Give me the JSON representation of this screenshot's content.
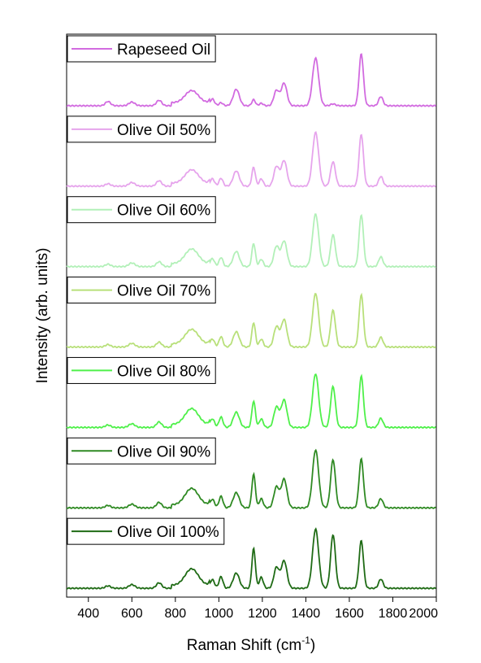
{
  "chart_data": {
    "type": "line",
    "title": "",
    "xlabel": "Raman Shift (cm",
    "xlabel_sup": "-1",
    "xlabel_close": ")",
    "ylabel": "Intensity (arb. units)",
    "xlim": [
      300,
      2000
    ],
    "x_ticks": [
      400,
      600,
      800,
      1000,
      1200,
      1400,
      1600,
      1800,
      2000
    ],
    "y_ticks_shown": false,
    "grid": false,
    "legend_placement": "top-left of each offset trace",
    "peaks_cm-1": [
      490,
      600,
      725,
      875,
      970,
      1010,
      1080,
      1160,
      1195,
      1265,
      1300,
      1445,
      1525,
      1655,
      1745
    ],
    "series": [
      {
        "name": "Rapeseed Oil",
        "color": "#d26be0",
        "heights": [
          0.07,
          0.06,
          0.09,
          0.2,
          0.11,
          0.05,
          0.27,
          0.1,
          0.04,
          0.25,
          0.37,
          0.78,
          0.03,
          0.85,
          0.15
        ]
      },
      {
        "name": "Olive Oil 50%",
        "color": "#e6a4ec",
        "heights": [
          0.04,
          0.06,
          0.09,
          0.22,
          0.12,
          0.13,
          0.25,
          0.31,
          0.12,
          0.32,
          0.42,
          0.88,
          0.4,
          0.85,
          0.16
        ]
      },
      {
        "name": "Olive Oil 60%",
        "color": "#b2f0b8",
        "heights": [
          0.04,
          0.06,
          0.08,
          0.24,
          0.13,
          0.15,
          0.25,
          0.38,
          0.12,
          0.33,
          0.42,
          0.86,
          0.52,
          0.85,
          0.16
        ]
      },
      {
        "name": "Olive Oil 70%",
        "color": "#b8e07a",
        "heights": [
          0.04,
          0.06,
          0.08,
          0.24,
          0.13,
          0.17,
          0.25,
          0.4,
          0.13,
          0.33,
          0.45,
          0.88,
          0.6,
          0.86,
          0.16
        ]
      },
      {
        "name": "Olive Oil 80%",
        "color": "#4ff04a",
        "heights": [
          0.04,
          0.06,
          0.09,
          0.26,
          0.14,
          0.17,
          0.25,
          0.43,
          0.14,
          0.33,
          0.45,
          0.88,
          0.67,
          0.84,
          0.15
        ]
      },
      {
        "name": "Olive Oil 90%",
        "color": "#2f8a23",
        "heights": [
          0.04,
          0.06,
          0.09,
          0.27,
          0.14,
          0.19,
          0.25,
          0.55,
          0.15,
          0.34,
          0.47,
          0.95,
          0.79,
          0.8,
          0.15
        ]
      },
      {
        "name": "Olive Oil 100%",
        "color": "#1f6b15",
        "heights": [
          0.04,
          0.06,
          0.09,
          0.27,
          0.14,
          0.19,
          0.25,
          0.65,
          0.18,
          0.34,
          0.45,
          0.97,
          0.88,
          0.78,
          0.15
        ]
      }
    ]
  }
}
